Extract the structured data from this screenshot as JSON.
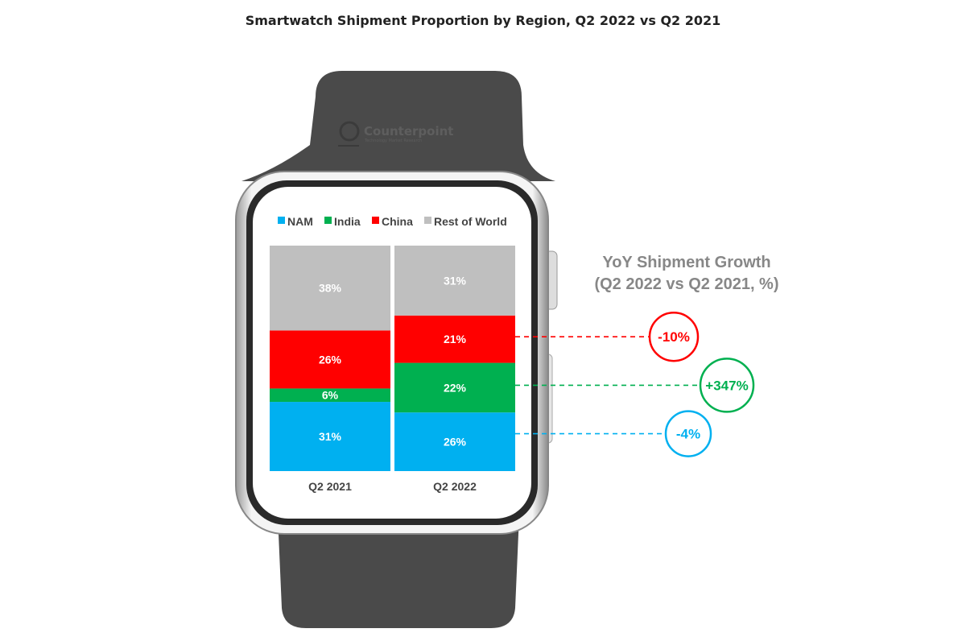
{
  "chart_data": {
    "type": "bar",
    "stacked": true,
    "title": "Smartwatch Shipment Proportion by Region, Q2 2022 vs Q2 2021",
    "categories": [
      "Q2 2021",
      "Q2 2022"
    ],
    "series": [
      {
        "name": "NAM",
        "color": "#00b0f0",
        "values": [
          31,
          26
        ]
      },
      {
        "name": "India",
        "color": "#00b050",
        "values": [
          6,
          22
        ]
      },
      {
        "name": "China",
        "color": "#ff0000",
        "values": [
          26,
          21
        ]
      },
      {
        "name": "Rest of World",
        "color": "#bfbfbf",
        "values": [
          38,
          31
        ]
      }
    ],
    "value_labels": [
      [
        "31%",
        "6%",
        "26%",
        "38%"
      ],
      [
        "26%",
        "22%",
        "21%",
        "31%"
      ]
    ],
    "ylim": [
      0,
      100
    ],
    "legend_position": "top",
    "annotation": {
      "title_line1": "YoY Shipment Growth",
      "title_line2": "(Q2 2022 vs Q2 2021, %)",
      "items": [
        {
          "region": "China",
          "label": "-10%",
          "value": -10,
          "color": "#ff0000"
        },
        {
          "region": "India",
          "label": "+347%",
          "value": 347,
          "color": "#00b050"
        },
        {
          "region": "NAM",
          "label": "-4%",
          "value": -4,
          "color": "#00b0f0"
        }
      ]
    },
    "watermark": {
      "name": "Counterpoint",
      "tagline": "Technology Market Research"
    }
  }
}
